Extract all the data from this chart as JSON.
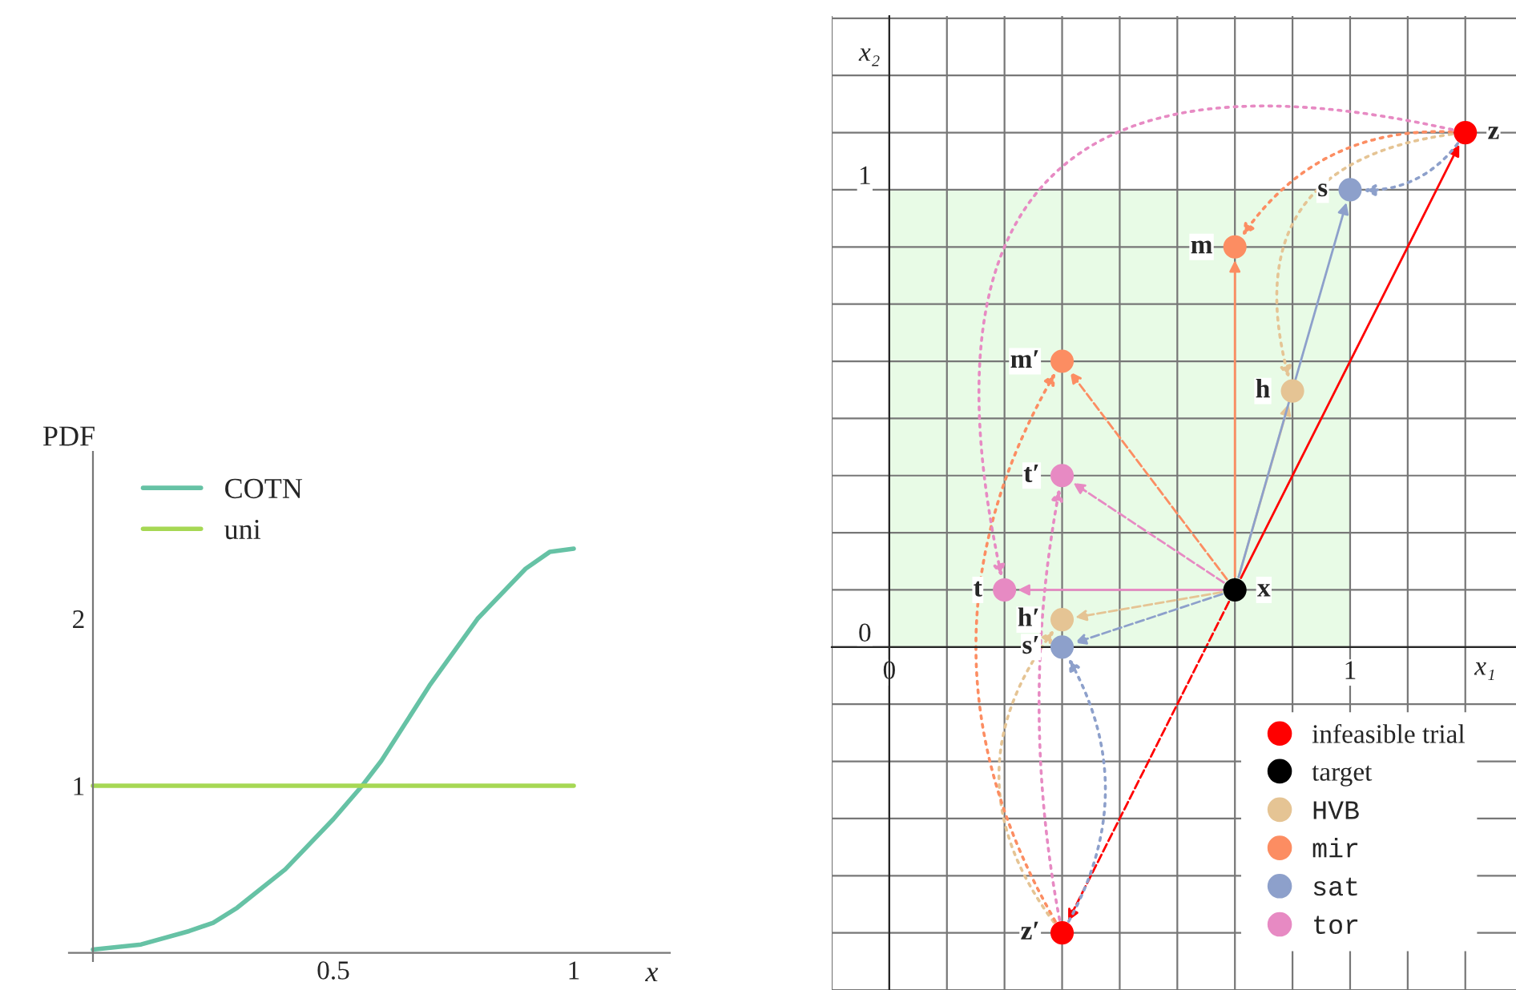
{
  "chart_data": [
    {
      "type": "line",
      "ylabel": "PDF",
      "xlabel": "x",
      "xlim": [
        -0.05,
        1.2
      ],
      "ylim": [
        -0.05,
        3.0
      ],
      "xticks": [
        0.5,
        1
      ],
      "yticks": [
        1,
        2
      ],
      "grid": false,
      "legend": "top left",
      "marker": "none",
      "series": [
        {
          "name": "COTN",
          "color": "#66c2a5",
          "x": [
            0,
            0.1,
            0.2,
            0.25,
            0.3,
            0.4,
            0.5,
            0.56,
            0.6,
            0.7,
            0.8,
            0.9,
            0.95,
            1.0
          ],
          "values": [
            0.02,
            0.05,
            0.13,
            0.18,
            0.27,
            0.5,
            0.8,
            1.0,
            1.15,
            1.6,
            2.0,
            2.3,
            2.4,
            2.42
          ]
        },
        {
          "name": "uni",
          "color": "#a6d854",
          "x": [
            0,
            1
          ],
          "values": [
            1,
            1
          ]
        }
      ]
    },
    {
      "type": "scatter",
      "xlabel": "x₁",
      "ylabel": "x₂",
      "xlim": [
        -0.125,
        1.36
      ],
      "ylim": [
        -0.75,
        1.38
      ],
      "xticks": [
        {
          "value": -0.125,
          "label": null
        },
        0,
        {
          "value": 0.125,
          "label": null
        },
        {
          "value": 0.25,
          "label": null
        },
        {
          "value": 0.375,
          "label": null
        },
        {
          "value": 0.5,
          "label": null
        },
        {
          "value": 0.625,
          "label": null
        },
        {
          "value": 0.75,
          "label": null
        },
        {
          "value": 0.875,
          "label": null
        },
        1,
        {
          "value": 1.125,
          "label": null
        },
        {
          "value": 1.25,
          "label": null
        }
      ],
      "yticks": [
        {
          "value": -0.75,
          "label": null
        },
        {
          "value": -0.625,
          "label": null
        },
        {
          "value": -0.5,
          "label": null
        },
        {
          "value": -0.375,
          "label": null
        },
        {
          "value": -0.25,
          "label": null
        },
        {
          "value": -0.125,
          "label": null
        },
        0,
        {
          "value": 0.125,
          "label": null
        },
        {
          "value": 0.25,
          "label": null
        },
        {
          "value": 0.375,
          "label": null
        },
        {
          "value": 0.5,
          "label": null
        },
        {
          "value": 0.625,
          "label": null
        },
        {
          "value": 0.75,
          "label": null
        },
        {
          "value": 0.875,
          "label": null
        },
        1,
        {
          "value": 1.125,
          "label": null
        },
        {
          "value": 1.25,
          "label": null
        },
        {
          "value": 1.375,
          "label": null
        }
      ],
      "grid": true,
      "legend": "bottom right",
      "marker": "circle",
      "series": [
        {
          "name": "infeasible trial",
          "color": "#ff0000",
          "x": [
            1.25,
            0.375
          ],
          "values": [
            1.125,
            -0.625
          ]
        },
        {
          "name": "target",
          "color": "#000000",
          "x": [
            0.75
          ],
          "values": [
            0.125
          ]
        },
        {
          "name": "HVB",
          "color": "#e5c494",
          "x": [
            0.875,
            0.375
          ],
          "values": [
            0.56,
            0.06
          ]
        },
        {
          "name": "mir",
          "color": "#fc8d62",
          "x": [
            0.75,
            0.375
          ],
          "values": [
            0.875,
            0.625
          ]
        },
        {
          "name": "sat",
          "color": "#8da0cb",
          "x": [
            1,
            0.375
          ],
          "values": [
            1,
            0
          ]
        },
        {
          "name": "tor",
          "color": "#e78ac3",
          "x": [
            0.25,
            0.375
          ],
          "values": [
            0.125,
            0.375
          ]
        }
      ],
      "annotations": [
        {
          "text": "z",
          "x": 1.25,
          "y": 1.125
        },
        {
          "text": "z′",
          "x": 0.375,
          "y": -0.625
        },
        {
          "text": "x",
          "x": 0.75,
          "y": 0.125
        },
        {
          "text": "h",
          "x": 0.875,
          "y": 0.56
        },
        {
          "text": "h′",
          "x": 0.375,
          "y": 0.06
        },
        {
          "text": "m",
          "x": 0.75,
          "y": 0.875
        },
        {
          "text": "m′",
          "x": 0.375,
          "y": 0.625
        },
        {
          "text": "s",
          "x": 1,
          "y": 1
        },
        {
          "text": "s′",
          "x": 0.375,
          "y": 0
        },
        {
          "text": "t",
          "x": 0.25,
          "y": 0.125
        },
        {
          "text": "t′",
          "x": 0.375,
          "y": 0.375
        }
      ]
    }
  ]
}
